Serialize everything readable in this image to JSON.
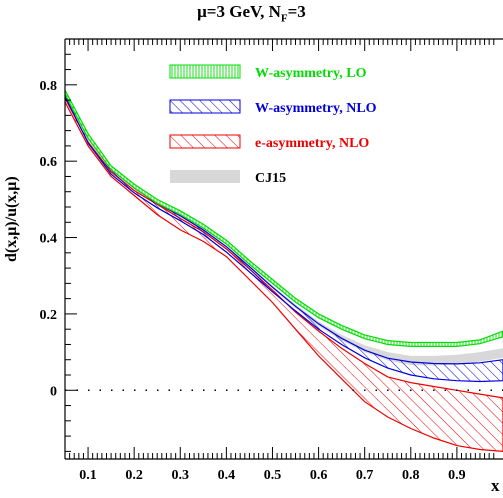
{
  "chart_data": {
    "type": "area",
    "title": "μ=3 GeV, N_F=3",
    "title_main": "μ=3 GeV, N",
    "title_sub": "F",
    "title_tail": "=3",
    "ylabel": "d(x,μ)/u(x,μ)",
    "xlabel": "x",
    "xlim": [
      0.05,
      1.0
    ],
    "ylim": [
      -0.18,
      0.92
    ],
    "xticks": [
      "0.1",
      "0.2",
      "0.3",
      "0.4",
      "0.5",
      "0.6",
      "0.7",
      "0.8",
      "0.9"
    ],
    "yticks": [
      "0",
      "0.2",
      "0.4",
      "0.6",
      "0.8"
    ],
    "reference_line": {
      "y": 0,
      "style": "dotted"
    },
    "x": [
      0.05,
      0.1,
      0.15,
      0.2,
      0.25,
      0.3,
      0.35,
      0.4,
      0.45,
      0.5,
      0.55,
      0.6,
      0.65,
      0.7,
      0.75,
      0.8,
      0.85,
      0.9,
      0.95,
      1.0
    ],
    "series": [
      {
        "name": "W-asymmetry, LO",
        "color": "#00dd00",
        "pattern": "vertical-hatch",
        "lower": [
          0.776,
          0.66,
          0.578,
          0.53,
          0.49,
          0.46,
          0.425,
          0.383,
          0.33,
          0.28,
          0.231,
          0.19,
          0.16,
          0.135,
          0.12,
          0.115,
          0.115,
          0.115,
          0.122,
          0.14
        ],
        "upper": [
          0.786,
          0.672,
          0.588,
          0.54,
          0.5,
          0.47,
          0.435,
          0.393,
          0.34,
          0.29,
          0.241,
          0.2,
          0.17,
          0.145,
          0.13,
          0.125,
          0.125,
          0.125,
          0.132,
          0.155
        ]
      },
      {
        "name": "W-asymmetry, NLO",
        "color": "#0000dd",
        "pattern": "diagonal-hatch",
        "lower": [
          0.77,
          0.648,
          0.566,
          0.517,
          0.478,
          0.444,
          0.408,
          0.362,
          0.31,
          0.258,
          0.208,
          0.16,
          0.12,
          0.085,
          0.058,
          0.04,
          0.03,
          0.025,
          0.023,
          0.025
        ],
        "upper": [
          0.785,
          0.665,
          0.58,
          0.53,
          0.49,
          0.457,
          0.42,
          0.376,
          0.324,
          0.27,
          0.22,
          0.174,
          0.136,
          0.105,
          0.084,
          0.074,
          0.07,
          0.069,
          0.072,
          0.08
        ]
      },
      {
        "name": "e-asymmetry, NLO",
        "color": "#ee0000",
        "pattern": "diagonal-hatch",
        "lower": [
          0.755,
          0.64,
          0.56,
          0.51,
          0.46,
          0.42,
          0.39,
          0.35,
          0.29,
          0.23,
          0.16,
          0.09,
          0.03,
          -0.03,
          -0.07,
          -0.1,
          -0.125,
          -0.145,
          -0.155,
          -0.16
        ],
        "upper": [
          0.765,
          0.65,
          0.572,
          0.523,
          0.487,
          0.45,
          0.415,
          0.37,
          0.318,
          0.262,
          0.205,
          0.155,
          0.11,
          0.07,
          0.035,
          0.02,
          0.01,
          0.0,
          -0.01,
          -0.02
        ]
      },
      {
        "name": "CJ15",
        "color": "#d8d8d8",
        "pattern": "solid",
        "lower": [
          0.77,
          0.655,
          0.572,
          0.522,
          0.484,
          0.451,
          0.415,
          0.37,
          0.318,
          0.266,
          0.215,
          0.168,
          0.13,
          0.1,
          0.078,
          0.066,
          0.065,
          0.068,
          0.075,
          0.085
        ],
        "upper": [
          0.778,
          0.663,
          0.58,
          0.53,
          0.492,
          0.459,
          0.423,
          0.378,
          0.326,
          0.274,
          0.225,
          0.18,
          0.145,
          0.118,
          0.1,
          0.09,
          0.09,
          0.093,
          0.1,
          0.11
        ]
      }
    ],
    "legend_position": "top-center"
  }
}
